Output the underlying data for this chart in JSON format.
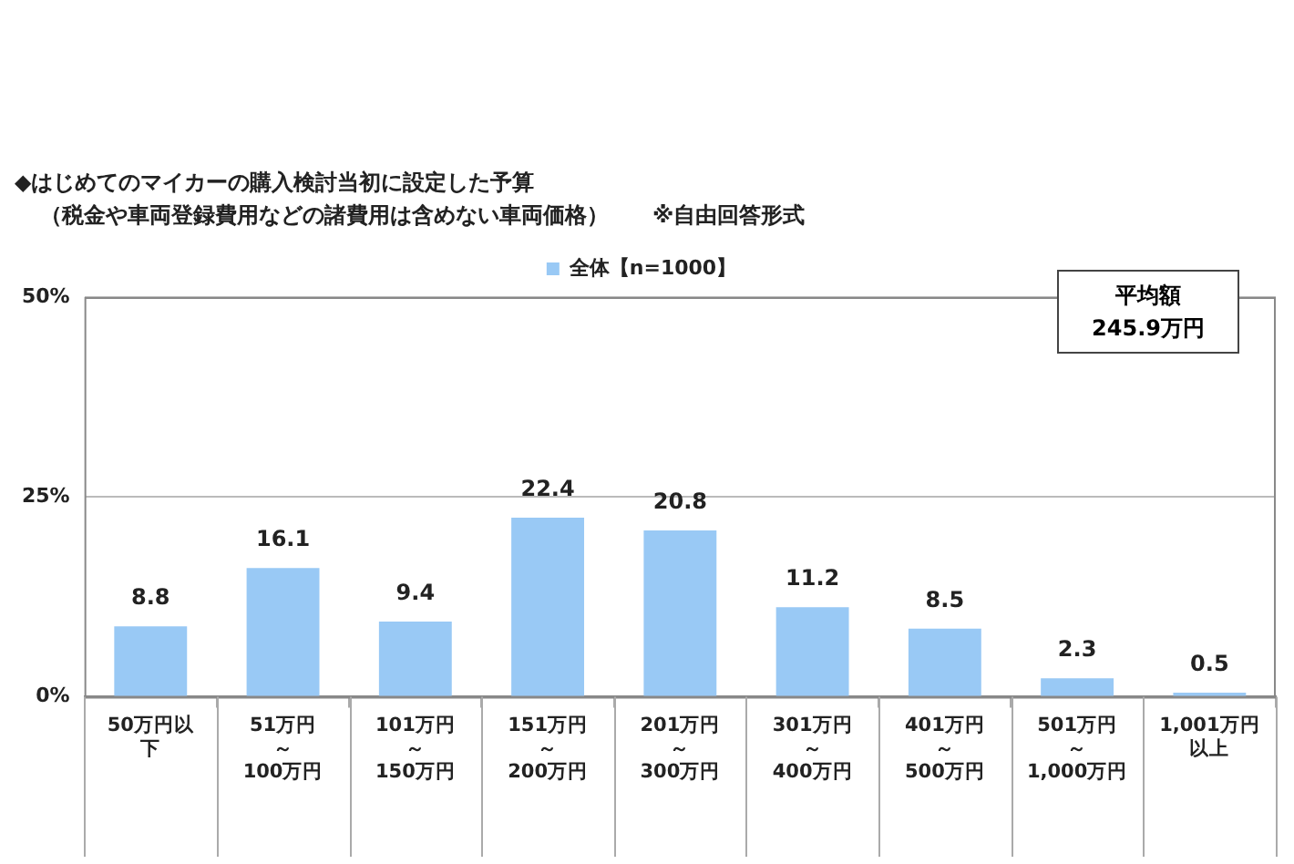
{
  "chart_data": {
    "type": "bar",
    "title": "◆はじめてのマイカーの購入検討当初に設定した予算",
    "subtitle": "（税金や車両登録費用などの諸費用は含めない車両価格）　　※自由回答形式",
    "categories": [
      "50万円以下",
      "51万円～100万円",
      "101万円～150万円",
      "151万円～200万円",
      "201万円～300万円",
      "301万円～400万円",
      "401万円～500万円",
      "501万円～1,000万円",
      "1,001万円以上"
    ],
    "series": [
      {
        "name": "全体【n=1000】",
        "color": "#99c9f5",
        "values": [
          8.8,
          16.1,
          9.4,
          22.4,
          20.8,
          11.2,
          8.5,
          2.3,
          0.5
        ]
      }
    ],
    "ylim": [
      0,
      50
    ],
    "yticks": [
      {
        "value": 0,
        "label": "0%"
      },
      {
        "value": 25,
        "label": "25%"
      },
      {
        "value": 50,
        "label": "50%"
      }
    ],
    "grid": "y",
    "legend": "top",
    "data_labels": true,
    "annotations": [
      "平均額",
      "245.9万円"
    ]
  }
}
